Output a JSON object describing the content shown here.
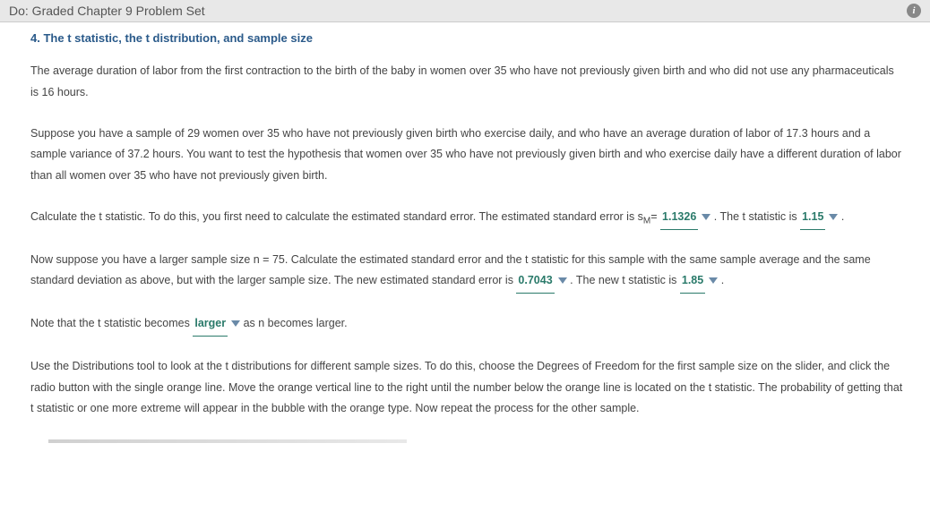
{
  "header": {
    "breadcrumb": "Do: Graded Chapter 9 Problem Set"
  },
  "question": {
    "number": "4.",
    "title": "The t statistic, the t distribution, and sample size"
  },
  "paragraphs": {
    "p1": "The average duration of labor from the first contraction to the birth of the baby in women over 35 who have not previously given birth and who did not use any pharmaceuticals is 16 hours.",
    "p2": "Suppose you have a sample of 29 women over 35 who have not previously given birth who exercise daily, and who have an average duration of labor of 17.3 hours and a sample variance of 37.2 hours. You want to test the hypothesis that women over 35 who have not previously given birth and who exercise daily have a different duration of labor than all women over 35 who have not previously given birth.",
    "p3a": "Calculate the t statistic. To do this, you first need to calculate the estimated standard error. The estimated standard error is s",
    "p3_sub": "M",
    "p3b": "= ",
    "p3c": " . The t statistic is ",
    "p3d": " .",
    "p4a": "Now suppose you have a larger sample size n = 75. Calculate the estimated standard error and the t statistic for this sample with the same sample average and the same standard deviation as above, but with the larger sample size. The new estimated standard error is ",
    "p4b": " . The new t statistic is ",
    "p4c": " .",
    "p5a": "Note that the t statistic becomes ",
    "p5b": " as n becomes larger.",
    "p6": "Use the Distributions tool to look at the t distributions for different sample sizes. To do this, choose the Degrees of Freedom for the first sample size on the slider, and click the radio button with the single orange line. Move the orange vertical line to the right until the number below the orange line is located on the t statistic. The probability of getting that t statistic or one more extreme will appear in the bubble with the orange type. Now repeat the process for the other sample."
  },
  "answers": {
    "se1": "1.1326",
    "t1": "1.15",
    "se2": "0.7043",
    "t2": "1.85",
    "direction": "larger"
  },
  "colors": {
    "title": "#2a5a8a",
    "answer": "#2a7a6a",
    "caret": "#6a8aa8",
    "topbar_bg": "#e8e8e8",
    "body_text": "#444"
  }
}
